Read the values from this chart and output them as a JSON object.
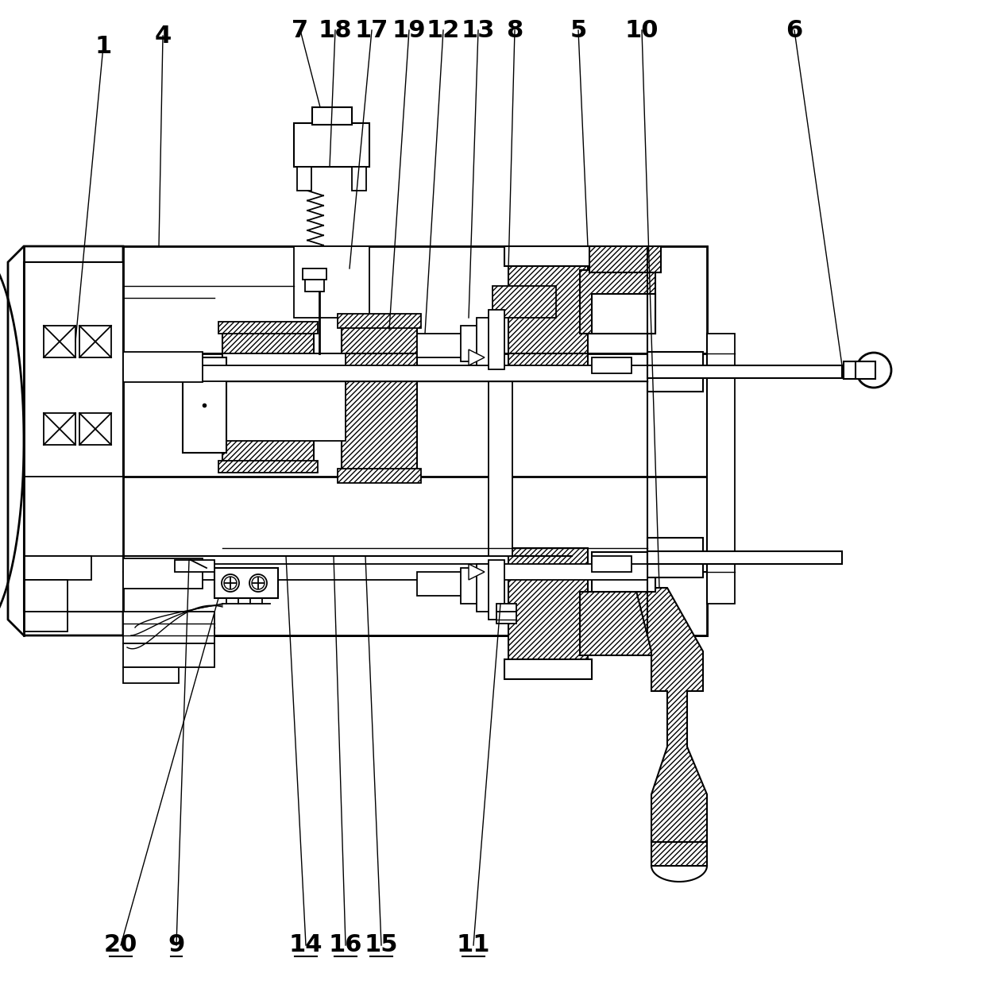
{
  "bg_color": "#ffffff",
  "line_color": "#000000",
  "figsize": [
    12.4,
    12.69
  ],
  "dpi": 100,
  "labels_top": [
    [
      "1",
      130,
      58
    ],
    [
      "4",
      205,
      45
    ],
    [
      "7",
      378,
      38
    ],
    [
      "18",
      422,
      38
    ],
    [
      "17",
      468,
      38
    ],
    [
      "19",
      515,
      38
    ],
    [
      "12",
      558,
      38
    ],
    [
      "13",
      602,
      38
    ],
    [
      "8",
      648,
      38
    ],
    [
      "5",
      728,
      38
    ],
    [
      "10",
      808,
      38
    ],
    [
      "6",
      1000,
      38
    ]
  ],
  "labels_bottom": [
    [
      "20",
      152,
      1190
    ],
    [
      "9",
      222,
      1190
    ],
    [
      "14",
      385,
      1190
    ],
    [
      "16",
      435,
      1190
    ],
    [
      "15",
      480,
      1190
    ],
    [
      "11",
      596,
      1190
    ]
  ]
}
